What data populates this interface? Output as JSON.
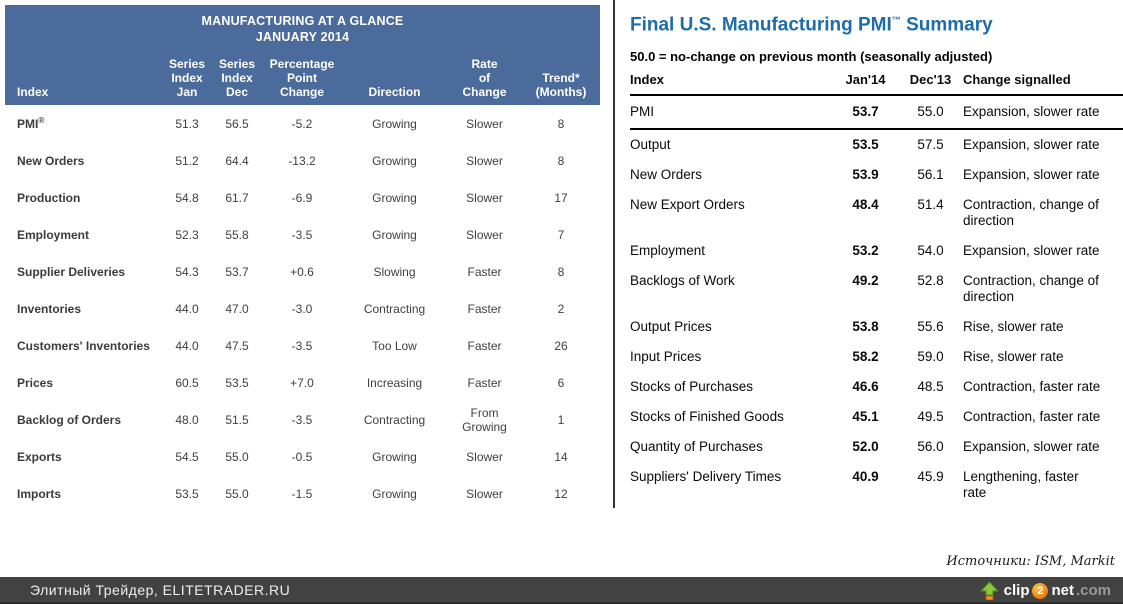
{
  "left_table": {
    "title_line1": "MANUFACTURING AT A GLANCE",
    "title_line2": "JANUARY 2014",
    "header_bg": "#4b6b9d",
    "columns": [
      "Index",
      "Series\nIndex\nJan",
      "Series\nIndex\nDec",
      "Percentage\nPoint\nChange",
      "Direction",
      "Rate\nof\nChange",
      "Trend*\n(Months)"
    ],
    "rows": [
      {
        "index": "PMI",
        "index_sup": "®",
        "jan": "51.3",
        "dec": "56.5",
        "pct_change": "-5.2",
        "direction": "Growing",
        "rate_of_change": "Slower",
        "trend_months": "8"
      },
      {
        "index": "New Orders",
        "jan": "51.2",
        "dec": "64.4",
        "pct_change": "-13.2",
        "direction": "Growing",
        "rate_of_change": "Slower",
        "trend_months": "8"
      },
      {
        "index": "Production",
        "jan": "54.8",
        "dec": "61.7",
        "pct_change": "-6.9",
        "direction": "Growing",
        "rate_of_change": "Slower",
        "trend_months": "17"
      },
      {
        "index": "Employment",
        "jan": "52.3",
        "dec": "55.8",
        "pct_change": "-3.5",
        "direction": "Growing",
        "rate_of_change": "Slower",
        "trend_months": "7"
      },
      {
        "index": "Supplier Deliveries",
        "jan": "54.3",
        "dec": "53.7",
        "pct_change": "+0.6",
        "direction": "Slowing",
        "rate_of_change": "Faster",
        "trend_months": "8"
      },
      {
        "index": "Inventories",
        "jan": "44.0",
        "dec": "47.0",
        "pct_change": "-3.0",
        "direction": "Contracting",
        "rate_of_change": "Faster",
        "trend_months": "2"
      },
      {
        "index": "Customers' Inventories",
        "jan": "44.0",
        "dec": "47.5",
        "pct_change": "-3.5",
        "direction": "Too Low",
        "rate_of_change": "Faster",
        "trend_months": "26"
      },
      {
        "index": "Prices",
        "jan": "60.5",
        "dec": "53.5",
        "pct_change": "+7.0",
        "direction": "Increasing",
        "rate_of_change": "Faster",
        "trend_months": "6"
      },
      {
        "index": "Backlog of Orders",
        "jan": "48.0",
        "dec": "51.5",
        "pct_change": "-3.5",
        "direction": "Contracting",
        "rate_of_change": "From Growing",
        "trend_months": "1"
      },
      {
        "index": "Exports",
        "jan": "54.5",
        "dec": "55.0",
        "pct_change": "-0.5",
        "direction": "Growing",
        "rate_of_change": "Slower",
        "trend_months": "14"
      },
      {
        "index": "Imports",
        "jan": "53.5",
        "dec": "55.0",
        "pct_change": "-1.5",
        "direction": "Growing",
        "rate_of_change": "Slower",
        "trend_months": "12"
      }
    ]
  },
  "right_table": {
    "title_main": "Final U.S. Manufacturing PMI",
    "title_tm": "™",
    "title_suffix": " Summary",
    "title_color": "#1c6da9",
    "subtitle": "50.0 = no-change on previous month (seasonally adjusted)",
    "columns": [
      "Index",
      "Jan'14",
      "Dec'13",
      "Change signalled"
    ],
    "rows": [
      {
        "index": "PMI",
        "jan": "53.7",
        "dec": "55.0",
        "change": "Expansion, slower rate"
      },
      {
        "index": "Output",
        "jan": "53.5",
        "dec": "57.5",
        "change": "Expansion, slower rate"
      },
      {
        "index": "New Orders",
        "jan": "53.9",
        "dec": "56.1",
        "change": "Expansion, slower rate"
      },
      {
        "index": "New Export Orders",
        "jan": "48.4",
        "dec": "51.4",
        "change": "Contraction, change of\ndirection"
      },
      {
        "index": "Employment",
        "jan": "53.2",
        "dec": "54.0",
        "change": "Expansion, slower rate"
      },
      {
        "index": "Backlogs of Work",
        "jan": "49.2",
        "dec": "52.8",
        "change": "Contraction, change of\ndirection"
      },
      {
        "index": "Output Prices",
        "jan": "53.8",
        "dec": "55.6",
        "change": "Rise, slower rate"
      },
      {
        "index": "Input Prices",
        "jan": "58.2",
        "dec": "59.0",
        "change": "Rise, slower rate"
      },
      {
        "index": "Stocks of Purchases",
        "jan": "46.6",
        "dec": "48.5",
        "change": "Contraction, faster rate"
      },
      {
        "index": "Stocks of Finished Goods",
        "jan": "45.1",
        "dec": "49.5",
        "change": "Contraction, faster rate"
      },
      {
        "index": "Quantity of Purchases",
        "jan": "52.0",
        "dec": "56.0",
        "change": "Expansion, slower rate"
      },
      {
        "index": "Suppliers' Delivery Times",
        "jan": "40.9",
        "dec": "45.9",
        "change": "Lengthening, faster\nrate"
      }
    ]
  },
  "source_note": "Источники: ISM, Markit",
  "footer": {
    "site_label": "Элитный Трейдер, ELITETRADER.RU",
    "bar_color": "#424242",
    "watermark": {
      "word1": "clip",
      "badge": "2",
      "word2": "net",
      "tld": ".com"
    }
  }
}
